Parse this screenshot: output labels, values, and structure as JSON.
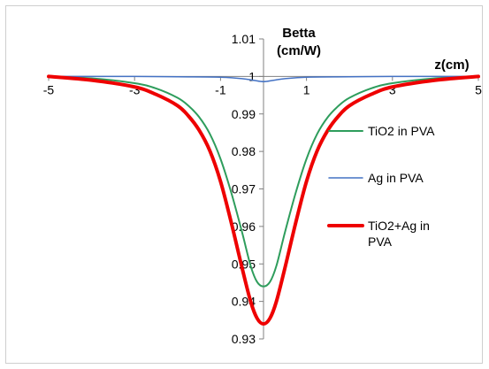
{
  "chart_data": {
    "type": "line",
    "title": "",
    "xlabel": "z(cm)",
    "ylabel_line1": "Betta",
    "ylabel_line2": "(cm/W)",
    "xlim": [
      -5,
      5
    ],
    "ylim": [
      0.93,
      1.01
    ],
    "x_ticks": [
      -5,
      -3,
      -1,
      1,
      3,
      5
    ],
    "x_tick_labels": [
      "-5",
      "-3",
      "-1",
      "1",
      "3",
      "5"
    ],
    "y_ticks": [
      0.93,
      0.94,
      0.95,
      0.96,
      0.97,
      0.98,
      0.99,
      1.0,
      1.01
    ],
    "y_tick_labels": [
      "0.93",
      "0.94",
      "0.95",
      "0.96",
      "0.97",
      "0.98",
      "0.99",
      "1",
      "1.01"
    ],
    "grid": false,
    "legend_position": "right",
    "series": [
      {
        "name": "TiO2 in PVA",
        "color": "#2e9d5c",
        "line_width": 2,
        "x": [
          -5,
          -4,
          -3,
          -2.5,
          -2,
          -1.75,
          -1.5,
          -1.25,
          -1,
          -0.75,
          -0.5,
          -0.3,
          -0.15,
          0,
          0.15,
          0.3,
          0.5,
          0.75,
          1,
          1.25,
          1.5,
          1.75,
          2,
          2.5,
          3,
          4,
          5
        ],
        "values": [
          1.0,
          0.9995,
          0.9982,
          0.9968,
          0.9943,
          0.9922,
          0.9892,
          0.9847,
          0.978,
          0.969,
          0.9585,
          0.9495,
          0.9452,
          0.944,
          0.9452,
          0.9495,
          0.9585,
          0.969,
          0.978,
          0.9847,
          0.9892,
          0.9922,
          0.9943,
          0.9968,
          0.9982,
          0.9995,
          1.0
        ]
      },
      {
        "name": "Ag in PVA",
        "color": "#4472c4",
        "line_width": 1.5,
        "x": [
          -5,
          -3,
          -2,
          -1,
          -0.5,
          -0.25,
          0,
          0.25,
          0.5,
          1,
          2,
          3,
          5
        ],
        "values": [
          1.0,
          1.0,
          0.9999,
          0.9998,
          0.9994,
          0.999,
          0.9986,
          0.999,
          0.9994,
          0.9998,
          0.9999,
          1.0,
          1.0
        ]
      },
      {
        "name": "TiO2+Ag in PVA",
        "color": "#ee0000",
        "line_width": 4,
        "x": [
          -5,
          -4,
          -3,
          -2.5,
          -2,
          -1.75,
          -1.5,
          -1.25,
          -1,
          -0.75,
          -0.5,
          -0.3,
          -0.15,
          0,
          0.15,
          0.3,
          0.5,
          0.75,
          1,
          1.25,
          1.5,
          1.75,
          2,
          2.5,
          3,
          4,
          5
        ],
        "values": [
          1.0,
          0.999,
          0.9972,
          0.9952,
          0.9922,
          0.9895,
          0.9857,
          0.9802,
          0.972,
          0.961,
          0.949,
          0.94,
          0.9355,
          0.934,
          0.9355,
          0.94,
          0.949,
          0.961,
          0.972,
          0.9802,
          0.9857,
          0.9895,
          0.9922,
          0.9952,
          0.9972,
          0.999,
          1.0
        ]
      }
    ],
    "legend": [
      {
        "label": "TiO2 in PVA",
        "color": "#2e9d5c",
        "line_width": 2
      },
      {
        "label": "Ag in PVA",
        "color": "#4472c4",
        "line_width": 1.5
      },
      {
        "label_line1": "TiO2+Ag in",
        "label_line2": "PVA",
        "color": "#ee0000",
        "line_width": 4
      }
    ]
  }
}
